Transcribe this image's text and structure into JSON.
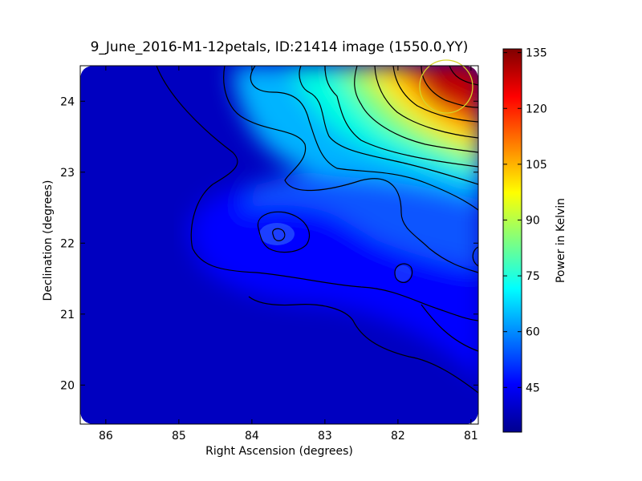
{
  "chart_data": {
    "type": "heatmap",
    "title": "9_June_2016-M1-12petals, ID:21414 image (1550.0,YY)",
    "xlabel": "Right Ascension (degrees)",
    "ylabel": "Declination (degrees)",
    "xlim": [
      86.35,
      80.9
    ],
    "ylim": [
      19.45,
      24.5
    ],
    "x_ticks": [
      86,
      85,
      84,
      83,
      82,
      81
    ],
    "y_ticks": [
      20,
      21,
      22,
      23,
      24
    ],
    "colorbar": {
      "label": "Power in Kelvin",
      "range": [
        33,
        136
      ],
      "ticks": [
        45,
        60,
        75,
        90,
        105,
        120,
        135
      ],
      "colormap": "jet"
    },
    "contours": true,
    "marker": {
      "type": "circle",
      "ra": 81.4,
      "dec": 24.05,
      "color": "#d4d42a"
    },
    "field_features": [
      {
        "type": "hotspot",
        "ra": 81.2,
        "dec": 24.1,
        "value": 130
      },
      {
        "type": "local_max",
        "ra": 83.6,
        "dec": 22.05,
        "value": 54
      },
      {
        "type": "local_max",
        "ra": 81.9,
        "dec": 21.5,
        "value": 55
      },
      {
        "type": "local_max",
        "ra": 80.95,
        "dec": 21.8,
        "value": 62
      }
    ]
  }
}
